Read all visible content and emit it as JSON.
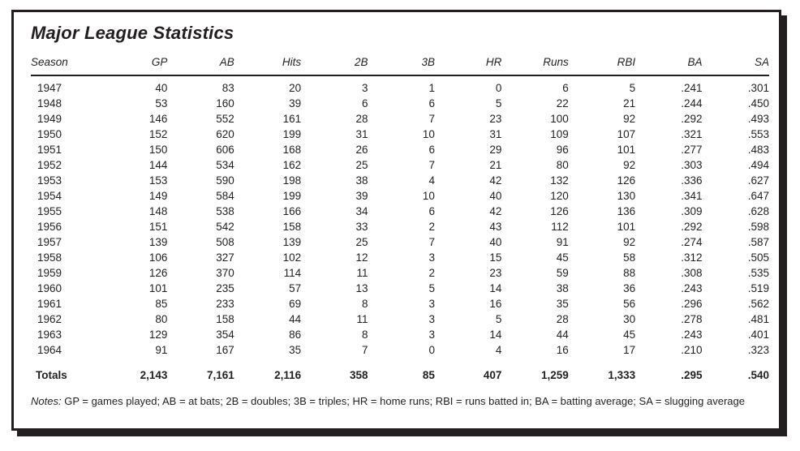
{
  "panel": {
    "title": "Major League Statistics"
  },
  "table": {
    "columns": [
      "Season",
      "GP",
      "AB",
      "Hits",
      "2B",
      "3B",
      "HR",
      "Runs",
      "RBI",
      "BA",
      "SA"
    ],
    "rows": [
      [
        "1947",
        "40",
        "83",
        "20",
        "3",
        "1",
        "0",
        "6",
        "5",
        ".241",
        ".301"
      ],
      [
        "1948",
        "53",
        "160",
        "39",
        "6",
        "6",
        "5",
        "22",
        "21",
        ".244",
        ".450"
      ],
      [
        "1949",
        "146",
        "552",
        "161",
        "28",
        "7",
        "23",
        "100",
        "92",
        ".292",
        ".493"
      ],
      [
        "1950",
        "152",
        "620",
        "199",
        "31",
        "10",
        "31",
        "109",
        "107",
        ".321",
        ".553"
      ],
      [
        "1951",
        "150",
        "606",
        "168",
        "26",
        "6",
        "29",
        "96",
        "101",
        ".277",
        ".483"
      ],
      [
        "1952",
        "144",
        "534",
        "162",
        "25",
        "7",
        "21",
        "80",
        "92",
        ".303",
        ".494"
      ],
      [
        "1953",
        "153",
        "590",
        "198",
        "38",
        "4",
        "42",
        "132",
        "126",
        ".336",
        ".627"
      ],
      [
        "1954",
        "149",
        "584",
        "199",
        "39",
        "10",
        "40",
        "120",
        "130",
        ".341",
        ".647"
      ],
      [
        "1955",
        "148",
        "538",
        "166",
        "34",
        "6",
        "42",
        "126",
        "136",
        ".309",
        ".628"
      ],
      [
        "1956",
        "151",
        "542",
        "158",
        "33",
        "2",
        "43",
        "112",
        "101",
        ".292",
        ".598"
      ],
      [
        "1957",
        "139",
        "508",
        "139",
        "25",
        "7",
        "40",
        "91",
        "92",
        ".274",
        ".587"
      ],
      [
        "1958",
        "106",
        "327",
        "102",
        "12",
        "3",
        "15",
        "45",
        "58",
        ".312",
        ".505"
      ],
      [
        "1959",
        "126",
        "370",
        "114",
        "11",
        "2",
        "23",
        "59",
        "88",
        ".308",
        ".535"
      ],
      [
        "1960",
        "101",
        "235",
        "57",
        "13",
        "5",
        "14",
        "38",
        "36",
        ".243",
        ".519"
      ],
      [
        "1961",
        "85",
        "233",
        "69",
        "8",
        "3",
        "16",
        "35",
        "56",
        ".296",
        ".562"
      ],
      [
        "1962",
        "80",
        "158",
        "44",
        "11",
        "3",
        "5",
        "28",
        "30",
        ".278",
        ".481"
      ],
      [
        "1963",
        "129",
        "354",
        "86",
        "8",
        "3",
        "14",
        "44",
        "45",
        ".243",
        ".401"
      ],
      [
        "1964",
        "91",
        "167",
        "35",
        "7",
        "0",
        "4",
        "16",
        "17",
        ".210",
        ".323"
      ]
    ],
    "totals": [
      "Totals",
      "2,143",
      "7,161",
      "2,116",
      "358",
      "85",
      "407",
      "1,259",
      "1,333",
      ".295",
      ".540"
    ]
  },
  "notes": {
    "label": "Notes:",
    "text": "GP = games played; AB = at bats; 2B = doubles; 3B = triples; HR = home runs; RBI = runs batted in; BA = batting average; SA = slugging average"
  },
  "colors": {
    "text": "#231f20",
    "border": "#231f20",
    "background": "#ffffff"
  }
}
